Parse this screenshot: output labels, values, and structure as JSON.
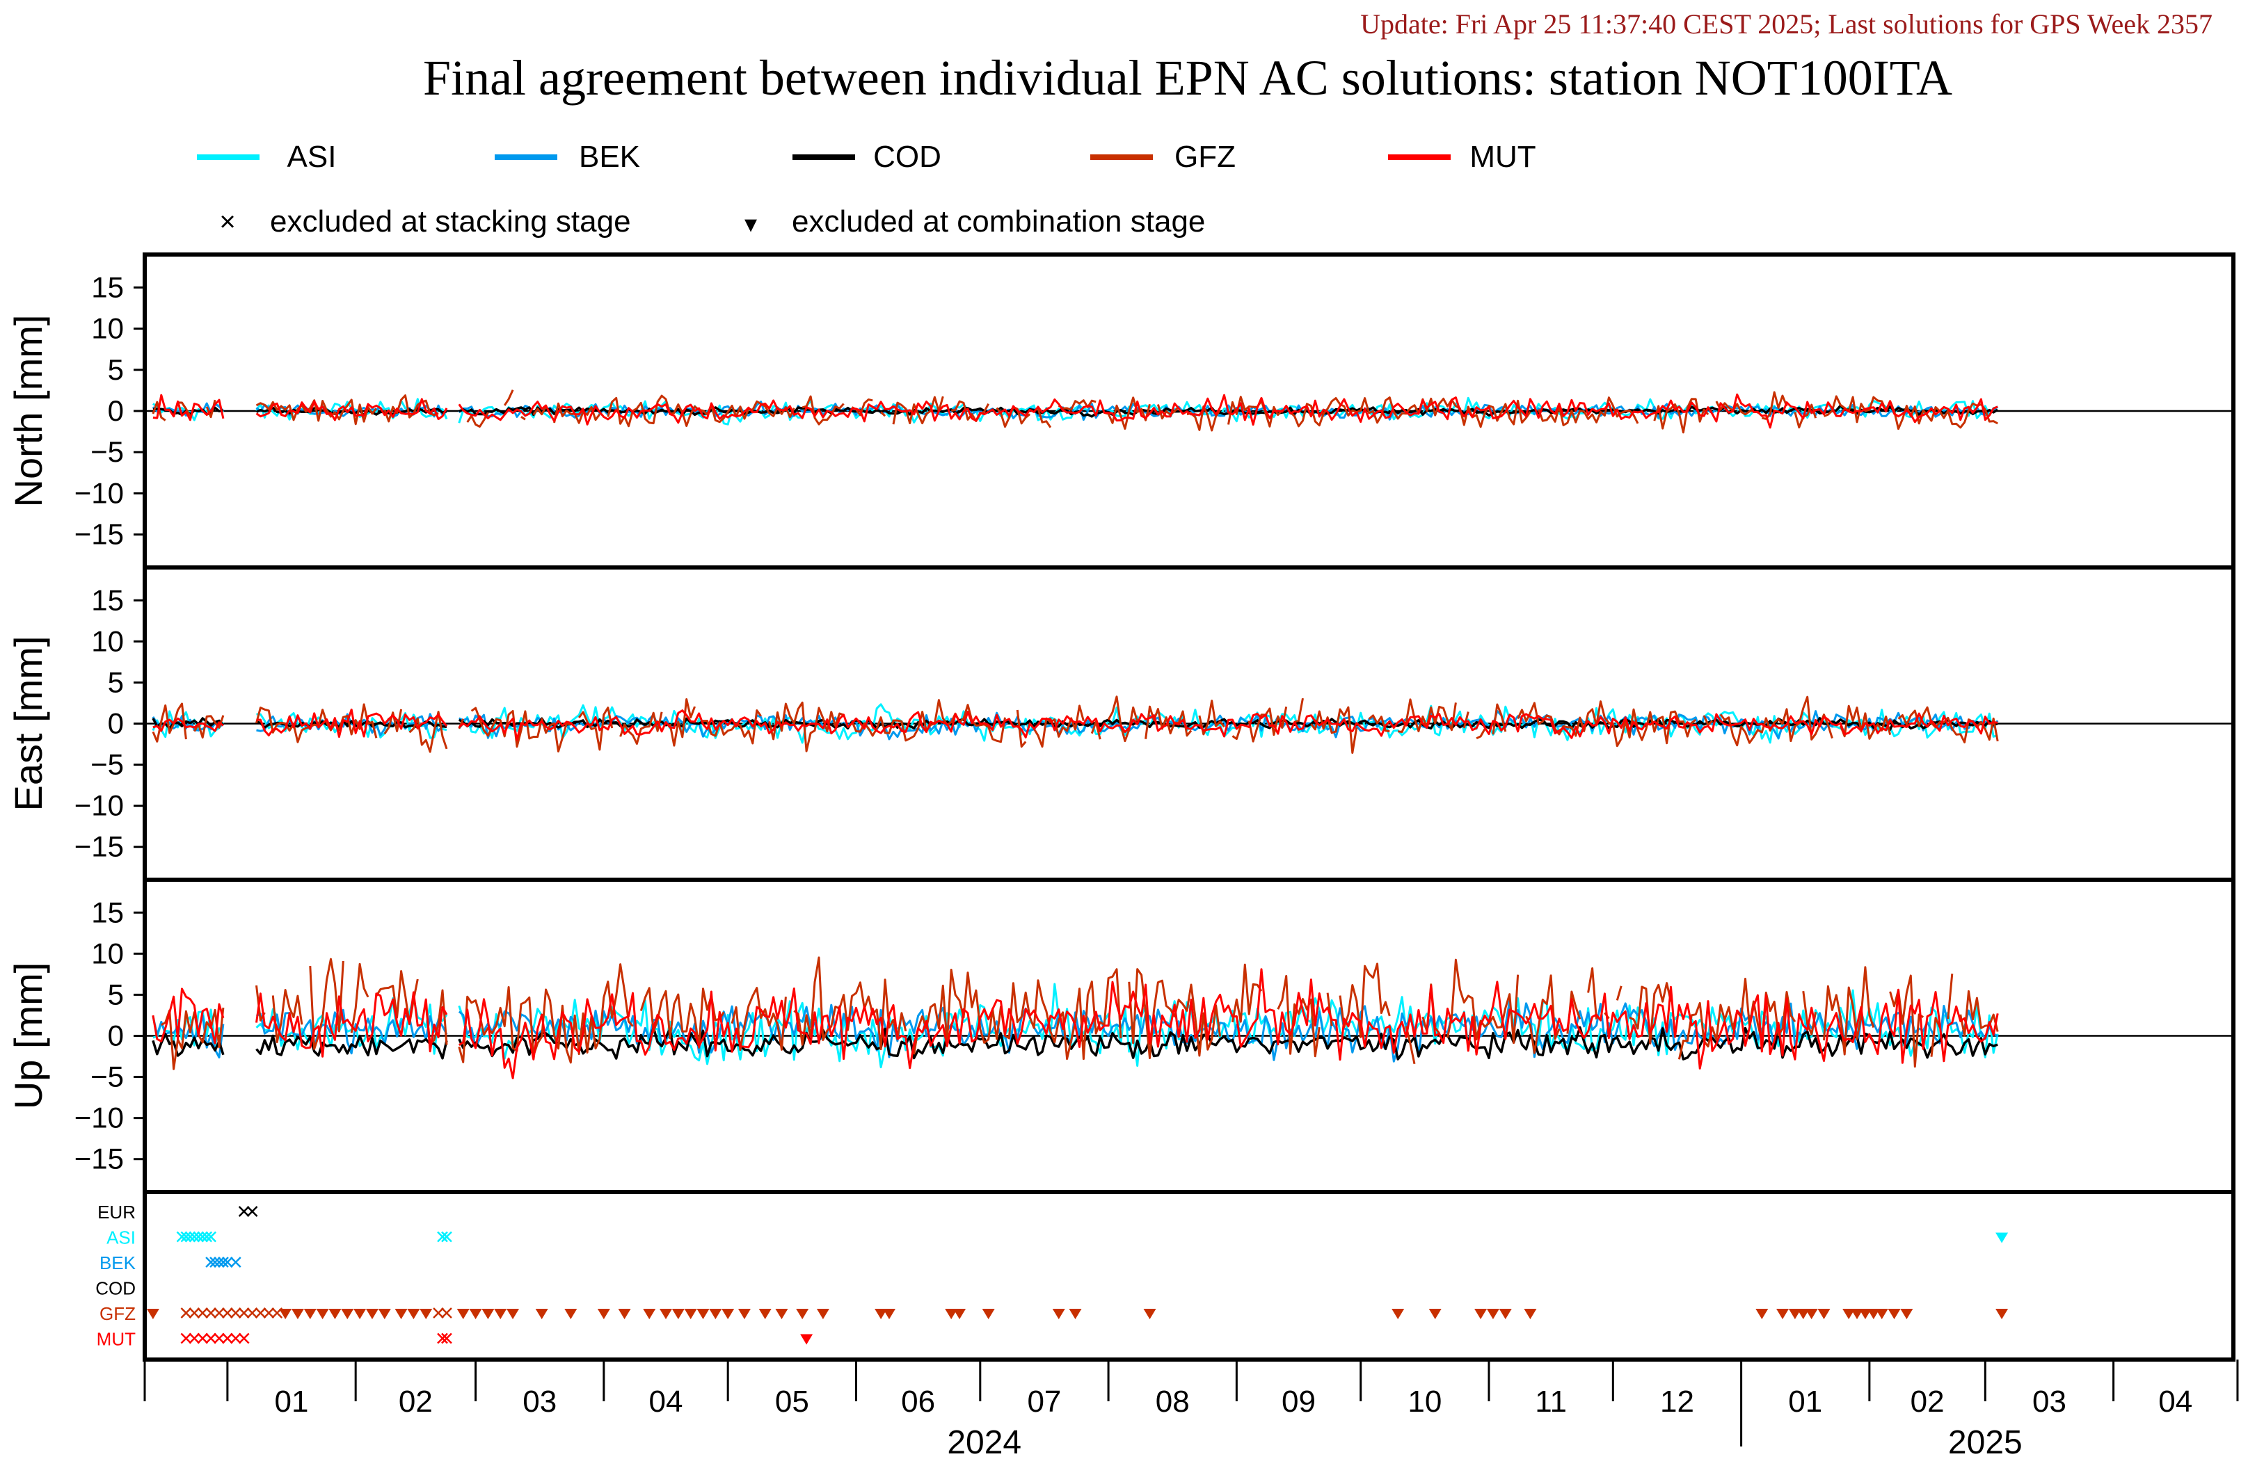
{
  "update_text": "Update: Fri Apr 25 11:37:40 CEST 2025; Last solutions for GPS Week 2357",
  "title": "Final agreement between individual EPN AC solutions: station NOT100ITA",
  "colors": {
    "ASI": "#00f0ff",
    "BEK": "#0099ee",
    "COD": "#000000",
    "GFZ": "#c83000",
    "MUT": "#ff0000",
    "EUR": "#000000",
    "update": "#9b1b1b"
  },
  "legend": {
    "series": [
      "ASI",
      "BEK",
      "COD",
      "GFZ",
      "MUT"
    ],
    "excluded_stacking": "excluded at stacking stage",
    "excluded_combination": "excluded at combination stage",
    "stacking_symbol": "×",
    "combination_symbol": "▾"
  },
  "chart_data": {
    "type": "line",
    "x_range": [
      "2023-12-12",
      "2025-04-30"
    ],
    "x_month_labels": [
      "01",
      "02",
      "03",
      "04",
      "05",
      "06",
      "07",
      "08",
      "09",
      "10",
      "11",
      "12",
      "01",
      "02",
      "03",
      "04"
    ],
    "x_year_labels": [
      "2024",
      "2025"
    ],
    "panels": [
      {
        "ylabel": "North [mm]",
        "ylim": [
          -19,
          19
        ],
        "yticks": [
          -15,
          -10,
          -5,
          0,
          5,
          10,
          15
        ],
        "amplitude": {
          "ASI": 0.8,
          "BEK": 0.6,
          "COD": 0.3,
          "GFZ": 1.4,
          "MUT": 1.0
        }
      },
      {
        "ylabel": "East [mm]",
        "ylim": [
          -19,
          19
        ],
        "yticks": [
          -15,
          -10,
          -5,
          0,
          5,
          10,
          15
        ],
        "amplitude": {
          "ASI": 1.3,
          "BEK": 0.9,
          "COD": 0.4,
          "GFZ": 2.0,
          "MUT": 1.0
        }
      },
      {
        "ylabel": "Up [mm]",
        "ylim": [
          -19,
          19
        ],
        "yticks": [
          -15,
          -10,
          -5,
          0,
          5,
          10,
          15
        ],
        "amplitude": {
          "ASI": 2.5,
          "BEK": 2.0,
          "COD": 1.2,
          "GFZ": 4.0,
          "MUT": 3.0
        },
        "offset": {
          "ASI": 1.0,
          "BEK": 1.0,
          "COD": -1.0,
          "GFZ": 3.0,
          "MUT": 1.5
        }
      }
    ],
    "data_gaps": [
      [
        "2023-12-31",
        "2024-01-08"
      ],
      [
        "2024-02-23",
        "2024-02-26"
      ]
    ],
    "series_end": "2025-03-04",
    "exclusion_rows": [
      {
        "name": "EUR",
        "stacking": [
          "2024-01-05",
          "2024-01-07"
        ],
        "combination": []
      },
      {
        "name": "ASI",
        "stacking": [
          "2023-12-21",
          "2023-12-22",
          "2023-12-23",
          "2023-12-24",
          "2023-12-25",
          "2023-12-26",
          "2023-12-27",
          "2023-12-28",
          "2024-02-22",
          "2024-02-23"
        ],
        "combination": [
          "2025-03-05"
        ]
      },
      {
        "name": "BEK",
        "stacking": [
          "2023-12-28",
          "2023-12-29",
          "2023-12-30",
          "2023-12-31",
          "2024-01-01",
          "2024-01-03"
        ],
        "combination": []
      },
      {
        "name": "COD",
        "stacking": [],
        "combination": []
      },
      {
        "name": "GFZ",
        "stacking": [
          "2023-12-22",
          "2023-12-24",
          "2023-12-26",
          "2023-12-28",
          "2023-12-30",
          "2024-01-01",
          "2024-01-03",
          "2024-01-05",
          "2024-01-07",
          "2024-01-09",
          "2024-01-11",
          "2024-01-13",
          "2024-02-21",
          "2024-02-23"
        ],
        "combination": [
          "2023-12-14",
          "2024-01-15",
          "2024-01-18",
          "2024-01-21",
          "2024-01-24",
          "2024-01-27",
          "2024-01-30",
          "2024-02-02",
          "2024-02-05",
          "2024-02-08",
          "2024-02-12",
          "2024-02-15",
          "2024-02-18",
          "2024-02-27",
          "2024-03-01",
          "2024-03-04",
          "2024-03-07",
          "2024-03-10",
          "2024-03-17",
          "2024-03-24",
          "2024-04-01",
          "2024-04-06",
          "2024-04-12",
          "2024-04-16",
          "2024-04-19",
          "2024-04-22",
          "2024-04-25",
          "2024-04-28",
          "2024-05-01",
          "2024-05-05",
          "2024-05-10",
          "2024-05-14",
          "2024-05-19",
          "2024-05-24",
          "2024-06-07",
          "2024-06-09",
          "2024-06-24",
          "2024-06-26",
          "2024-07-03",
          "2024-07-20",
          "2024-07-24",
          "2024-08-11",
          "2024-10-10",
          "2024-10-19",
          "2024-10-30",
          "2024-11-02",
          "2024-11-05",
          "2024-11-11",
          "2025-01-06",
          "2025-01-11",
          "2025-01-14",
          "2025-01-16",
          "2025-01-18",
          "2025-01-21",
          "2025-01-27",
          "2025-01-29",
          "2025-01-31",
          "2025-02-02",
          "2025-02-04",
          "2025-02-07",
          "2025-02-10",
          "2025-03-05"
        ]
      },
      {
        "name": "MUT",
        "stacking": [
          "2023-12-22",
          "2023-12-24",
          "2023-12-26",
          "2023-12-28",
          "2023-12-30",
          "2024-01-01",
          "2024-01-03",
          "2024-01-05",
          "2024-02-22",
          "2024-02-23"
        ],
        "combination": [
          "2024-05-20"
        ]
      }
    ]
  }
}
